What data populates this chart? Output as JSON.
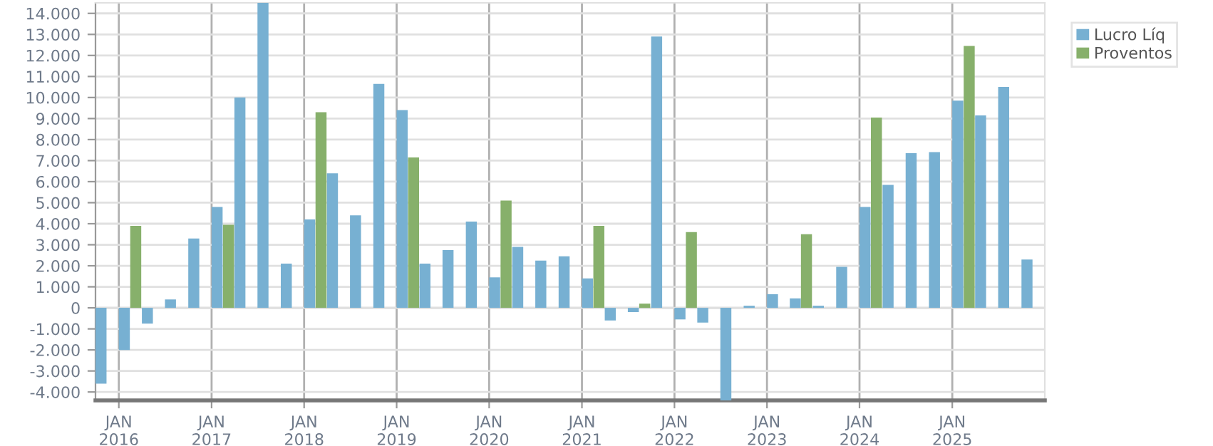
{
  "chart_data": {
    "type": "bar",
    "x": [
      "2015-10",
      "2016-01",
      "2016-04",
      "2016-07",
      "2016-10",
      "2017-01",
      "2017-04",
      "2017-07",
      "2017-10",
      "2018-01",
      "2018-04",
      "2018-07",
      "2018-10",
      "2019-01",
      "2019-04",
      "2019-07",
      "2019-10",
      "2020-01",
      "2020-04",
      "2020-07",
      "2020-10",
      "2021-01",
      "2021-04",
      "2021-07",
      "2021-10",
      "2022-01",
      "2022-04",
      "2022-07",
      "2022-10",
      "2023-01",
      "2023-04",
      "2023-07",
      "2023-10",
      "2024-01",
      "2024-04",
      "2024-07",
      "2024-10",
      "2025-01",
      "2025-04",
      "2025-07",
      "2025-10"
    ],
    "series": [
      {
        "name": "Lucro Líq",
        "color": "#77b0d2",
        "values": [
          -3600,
          -2000,
          -750,
          400,
          3300,
          4800,
          10000,
          14500,
          2100,
          4200,
          6400,
          4400,
          10650,
          9400,
          2100,
          2750,
          4100,
          1450,
          2900,
          2250,
          2450,
          1400,
          -600,
          -200,
          12900,
          -550,
          -700,
          -4400,
          100,
          650,
          450,
          100,
          1950,
          4800,
          5850,
          7350,
          7400,
          9850,
          9150,
          10500,
          2300
        ]
      },
      {
        "name": "Proventos",
        "color": "#87b06b",
        "x": [
          "2015-11-15",
          "2016-02-15",
          "2016-05-15",
          "2016-08-15",
          "2016-11-15",
          "2017-02-15",
          "2017-05-15",
          "2017-08-15",
          "2017-11-15",
          "2018-02-15",
          "2018-05-15",
          "2018-08-15",
          "2018-11-15",
          "2019-02-15",
          "2019-05-15",
          "2019-08-15",
          "2019-11-15",
          "2020-02-15",
          "2020-05-15",
          "2020-08-15",
          "2020-11-15",
          "2021-02-15",
          "2021-05-15",
          "2021-08-15",
          "2021-11-15",
          "2022-02-15",
          "2022-05-15",
          "2022-08-15",
          "2022-11-15",
          "2023-02-15",
          "2023-05-15",
          "2023-08-15",
          "2023-11-15",
          "2024-02-15",
          "2024-05-15",
          "2024-08-15",
          "2024-11-15",
          "2025-02-15",
          "2025-05-15",
          "2025-08-15",
          "2025-11-15"
        ],
        "values": [
          0,
          3900,
          0,
          0,
          0,
          3950,
          0,
          0,
          0,
          9300,
          0,
          0,
          0,
          7150,
          0,
          0,
          0,
          5100,
          0,
          0,
          0,
          3900,
          0,
          200,
          0,
          3600,
          0,
          0,
          0,
          0,
          3500,
          0,
          0,
          9050,
          0,
          0,
          0,
          12450,
          0,
          0,
          0
        ]
      }
    ],
    "xlim": [
      "2015-10",
      "2026-01"
    ],
    "xticks": [
      {
        "value": "2016-01",
        "label": "JAN\n2016"
      },
      {
        "value": "2017-01",
        "label": "JAN\n2017"
      },
      {
        "value": "2018-01",
        "label": "JAN\n2018"
      },
      {
        "value": "2019-01",
        "label": "JAN\n2019"
      },
      {
        "value": "2020-01",
        "label": "JAN\n2020"
      },
      {
        "value": "2021-01",
        "label": "JAN\n2021"
      },
      {
        "value": "2022-01",
        "label": "JAN\n2022"
      },
      {
        "value": "2023-01",
        "label": "JAN\n2023"
      },
      {
        "value": "2024-01",
        "label": "JAN\n2024"
      },
      {
        "value": "2025-01",
        "label": "JAN\n2025"
      }
    ],
    "ylim": [
      -4400,
      14500
    ],
    "yticks": [
      {
        "value": -4000,
        "label": "-4.000"
      },
      {
        "value": -3000,
        "label": "-3.000"
      },
      {
        "value": -2000,
        "label": "-2.000"
      },
      {
        "value": -1000,
        "label": "-1.000"
      },
      0,
      {
        "value": 1000,
        "label": "1.000"
      },
      {
        "value": 2000,
        "label": "2.000"
      },
      {
        "value": 3000,
        "label": "3.000"
      },
      {
        "value": 4000,
        "label": "4.000"
      },
      {
        "value": 5000,
        "label": "5.000"
      },
      {
        "value": 6000,
        "label": "6.000"
      },
      {
        "value": 7000,
        "label": "7.000"
      },
      {
        "value": 8000,
        "label": "8.000"
      },
      {
        "value": 9000,
        "label": "9.000"
      },
      {
        "value": 10000,
        "label": "10.000"
      },
      {
        "value": 11000,
        "label": "11.000"
      },
      {
        "value": 12000,
        "label": "12.000"
      },
      {
        "value": 13000,
        "label": "13.000"
      },
      {
        "value": 14000,
        "label": "14.000"
      }
    ],
    "grid": true,
    "legend": "top right"
  }
}
